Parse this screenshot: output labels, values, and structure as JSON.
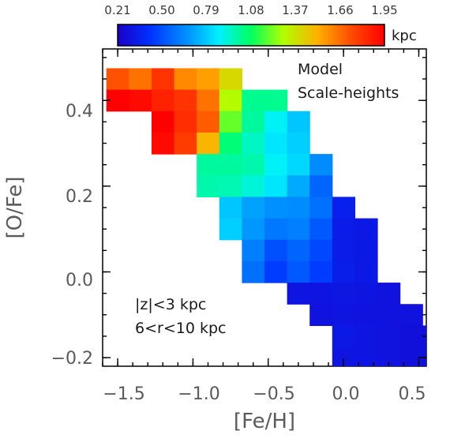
{
  "chart_data": {
    "type": "heatmap",
    "title": "",
    "xlabel": "[Fe/H]",
    "ylabel": "[O/Fe]",
    "xlim": [
      -1.6,
      0.55
    ],
    "ylim": [
      -0.22,
      0.52
    ],
    "xticks": [
      -1.5,
      -1.0,
      -0.5,
      0.0,
      0.5
    ],
    "yticks": [
      -0.2,
      0.0,
      0.2,
      0.4
    ],
    "xtick_labels": [
      "−1.5",
      "−1.0",
      "−0.5",
      "0.0",
      "0.5"
    ],
    "ytick_labels": [
      "−0.2",
      "0.0",
      "0.2",
      "0.4"
    ],
    "bin_size": {
      "fe": 0.15,
      "o": 0.05
    },
    "colorbar": {
      "min": 0.21,
      "max": 1.95,
      "unit": "kpc",
      "tick_labels": [
        "0.21",
        "0.50",
        "0.79",
        "1.08",
        "1.37",
        "1.66",
        "1.95"
      ]
    },
    "annotations": {
      "legend_line1": "Model",
      "legend_line2": "Scale-heights",
      "cut_line1": "|z|<3 kpc",
      "cut_line2": "6<r<10 kpc"
    },
    "cells": [
      {
        "fe": -1.5,
        "o": 0.45,
        "v": 1.72
      },
      {
        "fe": -1.35,
        "o": 0.45,
        "v": 1.65
      },
      {
        "fe": -1.2,
        "o": 0.45,
        "v": 1.8
      },
      {
        "fe": -1.05,
        "o": 0.45,
        "v": 1.6
      },
      {
        "fe": -0.9,
        "o": 0.45,
        "v": 1.55
      },
      {
        "fe": -0.75,
        "o": 0.45,
        "v": 1.4
      },
      {
        "fe": -1.5,
        "o": 0.4,
        "v": 1.95
      },
      {
        "fe": -1.35,
        "o": 0.4,
        "v": 1.92
      },
      {
        "fe": -1.2,
        "o": 0.4,
        "v": 1.85
      },
      {
        "fe": -1.05,
        "o": 0.4,
        "v": 1.8
      },
      {
        "fe": -0.9,
        "o": 0.4,
        "v": 1.65
      },
      {
        "fe": -0.75,
        "o": 0.4,
        "v": 1.3
      },
      {
        "fe": -0.6,
        "o": 0.4,
        "v": 1.02
      },
      {
        "fe": -0.45,
        "o": 0.4,
        "v": 1.02
      },
      {
        "fe": -1.2,
        "o": 0.35,
        "v": 1.95
      },
      {
        "fe": -1.05,
        "o": 0.35,
        "v": 1.82
      },
      {
        "fe": -0.9,
        "o": 0.35,
        "v": 1.7
      },
      {
        "fe": -0.75,
        "o": 0.35,
        "v": 1.2
      },
      {
        "fe": -0.6,
        "o": 0.35,
        "v": 1.0
      },
      {
        "fe": -0.45,
        "o": 0.35,
        "v": 0.88
      },
      {
        "fe": -0.3,
        "o": 0.35,
        "v": 0.78
      },
      {
        "fe": -1.2,
        "o": 0.3,
        "v": 1.92
      },
      {
        "fe": -1.05,
        "o": 0.3,
        "v": 1.78
      },
      {
        "fe": -0.9,
        "o": 0.3,
        "v": 1.5
      },
      {
        "fe": -0.75,
        "o": 0.3,
        "v": 1.05
      },
      {
        "fe": -0.6,
        "o": 0.3,
        "v": 0.95
      },
      {
        "fe": -0.45,
        "o": 0.3,
        "v": 0.85
      },
      {
        "fe": -0.3,
        "o": 0.3,
        "v": 0.8
      },
      {
        "fe": -0.9,
        "o": 0.25,
        "v": 1.0
      },
      {
        "fe": -0.75,
        "o": 0.25,
        "v": 1.0
      },
      {
        "fe": -0.6,
        "o": 0.25,
        "v": 0.98
      },
      {
        "fe": -0.45,
        "o": 0.25,
        "v": 0.88
      },
      {
        "fe": -0.3,
        "o": 0.25,
        "v": 0.82
      },
      {
        "fe": -0.15,
        "o": 0.25,
        "v": 0.65
      },
      {
        "fe": -0.9,
        "o": 0.2,
        "v": 0.98
      },
      {
        "fe": -0.75,
        "o": 0.2,
        "v": 0.97
      },
      {
        "fe": -0.6,
        "o": 0.2,
        "v": 0.92
      },
      {
        "fe": -0.45,
        "o": 0.2,
        "v": 0.85
      },
      {
        "fe": -0.3,
        "o": 0.2,
        "v": 0.72
      },
      {
        "fe": -0.15,
        "o": 0.2,
        "v": 0.55
      },
      {
        "fe": -0.75,
        "o": 0.15,
        "v": 0.78
      },
      {
        "fe": -0.6,
        "o": 0.15,
        "v": 0.7
      },
      {
        "fe": -0.45,
        "o": 0.15,
        "v": 0.66
      },
      {
        "fe": -0.3,
        "o": 0.15,
        "v": 0.65
      },
      {
        "fe": -0.15,
        "o": 0.15,
        "v": 0.58
      },
      {
        "fe": 0.0,
        "o": 0.15,
        "v": 0.35
      },
      {
        "fe": -0.75,
        "o": 0.1,
        "v": 0.8
      },
      {
        "fe": -0.6,
        "o": 0.1,
        "v": 0.68
      },
      {
        "fe": -0.45,
        "o": 0.1,
        "v": 0.6
      },
      {
        "fe": -0.3,
        "o": 0.1,
        "v": 0.62
      },
      {
        "fe": -0.15,
        "o": 0.1,
        "v": 0.52
      },
      {
        "fe": 0.0,
        "o": 0.1,
        "v": 0.33
      },
      {
        "fe": 0.15,
        "o": 0.1,
        "v": 0.32
      },
      {
        "fe": -0.6,
        "o": 0.05,
        "v": 0.62
      },
      {
        "fe": -0.45,
        "o": 0.05,
        "v": 0.5
      },
      {
        "fe": -0.3,
        "o": 0.05,
        "v": 0.55
      },
      {
        "fe": -0.15,
        "o": 0.05,
        "v": 0.48
      },
      {
        "fe": 0.0,
        "o": 0.05,
        "v": 0.33
      },
      {
        "fe": 0.15,
        "o": 0.05,
        "v": 0.32
      },
      {
        "fe": -0.6,
        "o": 0.0,
        "v": 0.58
      },
      {
        "fe": -0.45,
        "o": 0.0,
        "v": 0.45
      },
      {
        "fe": -0.3,
        "o": 0.0,
        "v": 0.52
      },
      {
        "fe": -0.15,
        "o": 0.0,
        "v": 0.45
      },
      {
        "fe": 0.0,
        "o": 0.0,
        "v": 0.34
      },
      {
        "fe": 0.15,
        "o": 0.0,
        "v": 0.32
      },
      {
        "fe": -0.3,
        "o": -0.05,
        "v": 0.3
      },
      {
        "fe": -0.15,
        "o": -0.05,
        "v": 0.3
      },
      {
        "fe": 0.0,
        "o": -0.05,
        "v": 0.31
      },
      {
        "fe": 0.15,
        "o": -0.05,
        "v": 0.3
      },
      {
        "fe": 0.3,
        "o": -0.05,
        "v": 0.29
      },
      {
        "fe": -0.15,
        "o": -0.1,
        "v": 0.29
      },
      {
        "fe": 0.0,
        "o": -0.1,
        "v": 0.3
      },
      {
        "fe": 0.15,
        "o": -0.1,
        "v": 0.29
      },
      {
        "fe": 0.3,
        "o": -0.1,
        "v": 0.29
      },
      {
        "fe": 0.45,
        "o": -0.1,
        "v": 0.29
      },
      {
        "fe": 0.0,
        "o": -0.15,
        "v": 0.32
      },
      {
        "fe": 0.15,
        "o": -0.15,
        "v": 0.3
      },
      {
        "fe": 0.3,
        "o": -0.15,
        "v": 0.29
      },
      {
        "fe": 0.45,
        "o": -0.15,
        "v": 0.28
      },
      {
        "fe": 0.0,
        "o": -0.2,
        "v": 0.3
      },
      {
        "fe": 0.15,
        "o": -0.2,
        "v": 0.3
      },
      {
        "fe": 0.3,
        "o": -0.2,
        "v": 0.29
      },
      {
        "fe": 0.45,
        "o": -0.2,
        "v": 0.28
      },
      {
        "fe": 0.6,
        "o": -0.2,
        "v": 0.28
      },
      {
        "fe": 0.6,
        "o": -0.15,
        "v": 0.28
      }
    ]
  }
}
